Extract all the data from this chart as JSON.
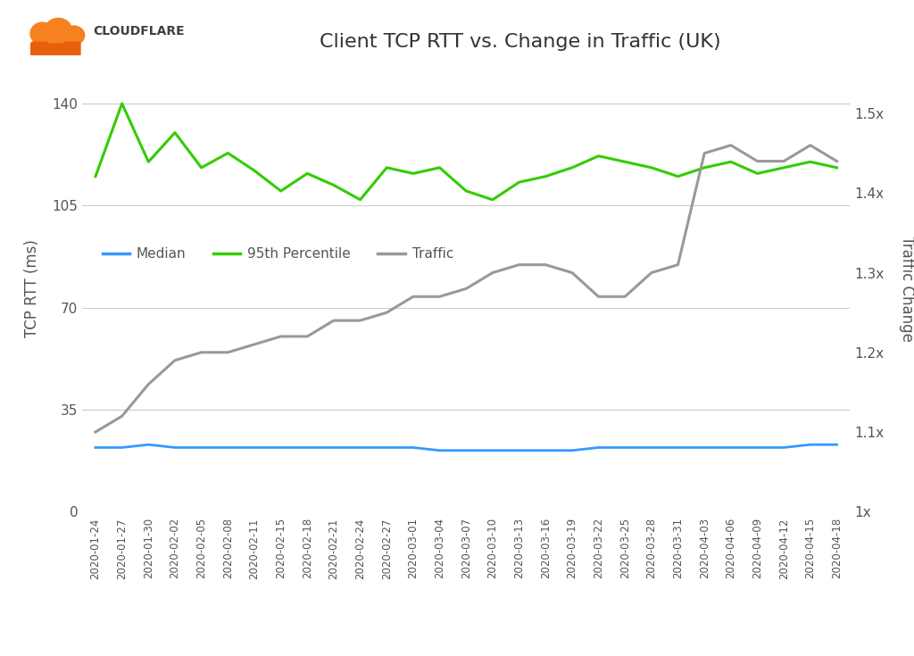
{
  "title": "Client TCP RTT vs. Change in Traffic (UK)",
  "ylabel_left": "TCP RTT (ms)",
  "ylabel_right": "Traffic Change",
  "yticks_left": [
    0,
    35,
    70,
    105,
    140
  ],
  "yticks_right": [
    1.0,
    1.1,
    1.2,
    1.3,
    1.4,
    1.5
  ],
  "ytick_right_labels": [
    "1x",
    "1.1x",
    "1.2x",
    "1.3x",
    "1.4x",
    "1.5x"
  ],
  "ylim_left": [
    0,
    153
  ],
  "ylim_right": [
    1.0,
    1.56
  ],
  "background_color": "#ffffff",
  "grid_color": "#cccccc",
  "median_color": "#3399ff",
  "p95_color": "#33cc00",
  "traffic_color": "#999999",
  "dates": [
    "2020-01-24",
    "2020-01-27",
    "2020-01-30",
    "2020-02-02",
    "2020-02-05",
    "2020-02-08",
    "2020-02-11",
    "2020-02-15",
    "2020-02-18",
    "2020-02-21",
    "2020-02-24",
    "2020-02-27",
    "2020-03-01",
    "2020-03-04",
    "2020-03-07",
    "2020-03-10",
    "2020-03-13",
    "2020-03-16",
    "2020-03-19",
    "2020-03-22",
    "2020-03-25",
    "2020-03-28",
    "2020-03-31",
    "2020-04-03",
    "2020-04-06",
    "2020-04-09",
    "2020-04-12",
    "2020-04-15",
    "2020-04-18"
  ],
  "median_values": [
    22,
    22,
    23,
    22,
    22,
    22,
    22,
    22,
    22,
    22,
    22,
    22,
    22,
    21,
    21,
    21,
    21,
    21,
    21,
    22,
    22,
    22,
    22,
    22,
    22,
    22,
    22,
    23,
    23
  ],
  "p95_values": [
    115,
    140,
    120,
    130,
    118,
    123,
    117,
    110,
    116,
    112,
    107,
    118,
    116,
    118,
    110,
    107,
    113,
    115,
    118,
    122,
    120,
    118,
    115,
    118,
    120,
    116,
    118,
    120,
    118
  ],
  "traffic_values": [
    1.1,
    1.12,
    1.16,
    1.19,
    1.2,
    1.2,
    1.21,
    1.22,
    1.22,
    1.24,
    1.24,
    1.25,
    1.27,
    1.27,
    1.28,
    1.3,
    1.31,
    1.31,
    1.3,
    1.27,
    1.27,
    1.3,
    1.31,
    1.45,
    1.46,
    1.44,
    1.44,
    1.46,
    1.44
  ],
  "legend_labels": [
    "Median",
    "95th Percentile",
    "Traffic"
  ],
  "xtick_labels": [
    "2020-01-24",
    "2020-01-27",
    "2020-01-30",
    "2020-02-02",
    "2020-02-05",
    "2020-02-08",
    "2020-02-11",
    "2020-02-15",
    "2020-02-18",
    "2020-02-21",
    "2020-02-24",
    "2020-02-27",
    "2020-03-01",
    "2020-03-04",
    "2020-03-07",
    "2020-03-10",
    "2020-03-13",
    "2020-03-16",
    "2020-03-19",
    "2020-03-22",
    "2020-03-25",
    "2020-03-28",
    "2020-03-31",
    "2020-04-03",
    "2020-04-06",
    "2020-04-09",
    "2020-04-12",
    "2020-04-15",
    "2020-04-18"
  ],
  "cloud_orange": "#F6821F",
  "cloud_dark": "#FBAD41",
  "cloudflare_text_color": "#404040",
  "title_color": "#333333",
  "tick_color": "#555555",
  "label_color": "#555555"
}
